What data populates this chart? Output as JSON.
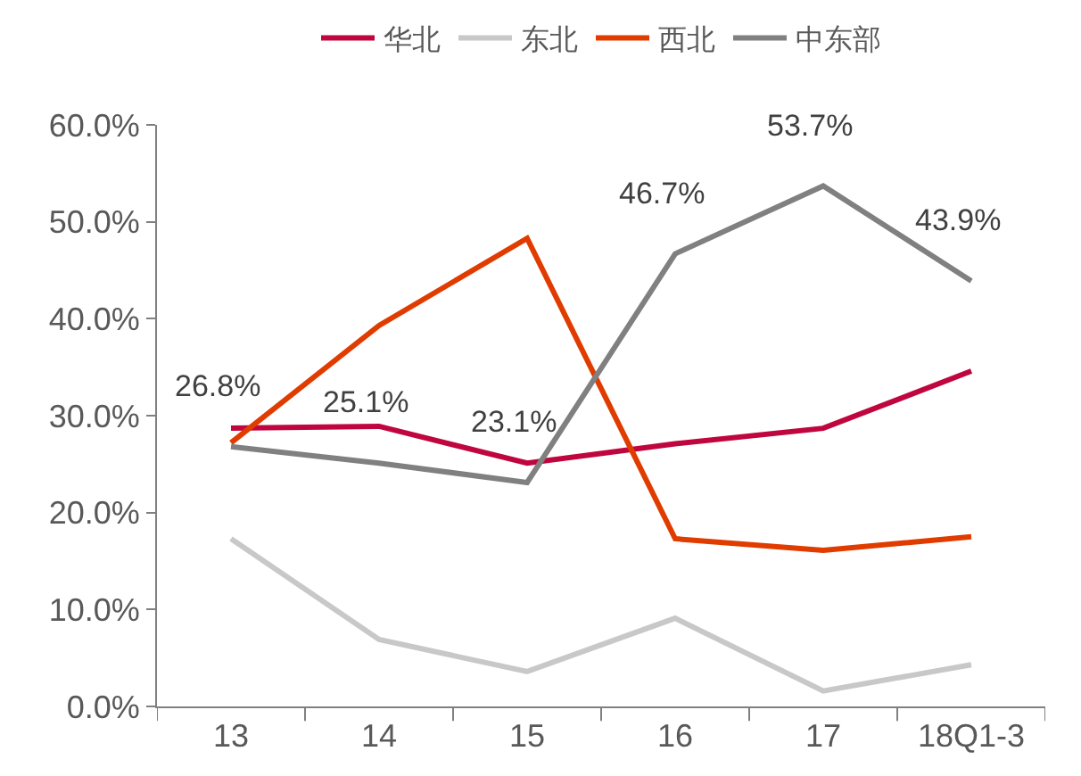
{
  "chart_data": {
    "type": "line",
    "categories": [
      "13",
      "14",
      "15",
      "16",
      "17",
      "18Q1-3"
    ],
    "series": [
      {
        "name": "华北",
        "color": "#c0063f",
        "values": [
          28.7,
          28.9,
          25.1,
          27.1,
          28.7,
          34.6
        ]
      },
      {
        "name": "东北",
        "color": "#c8c8c8",
        "values": [
          17.3,
          6.9,
          3.6,
          9.1,
          1.6,
          4.3
        ]
      },
      {
        "name": "西北",
        "color": "#e03c00",
        "values": [
          27.2,
          39.3,
          48.3,
          17.3,
          16.1,
          17.5
        ]
      },
      {
        "name": "中东部",
        "color": "#808080",
        "values": [
          26.8,
          25.1,
          23.1,
          46.7,
          53.7,
          43.9
        ],
        "value_labels": [
          "26.8%",
          "25.1%",
          "23.1%",
          "46.7%",
          "53.7%",
          "43.9%"
        ]
      }
    ],
    "ylim": [
      0,
      60
    ],
    "yticks": [
      {
        "value": 0,
        "label": "0.0%"
      },
      {
        "value": 10,
        "label": "10.0%"
      },
      {
        "value": 20,
        "label": "20.0%"
      },
      {
        "value": 30,
        "label": "30.0%"
      },
      {
        "value": 40,
        "label": "40.0%"
      },
      {
        "value": 50,
        "label": "50.0%"
      },
      {
        "value": 60,
        "label": "60.0%"
      }
    ],
    "legend": "top",
    "marker": "none",
    "line_style": "solid"
  }
}
